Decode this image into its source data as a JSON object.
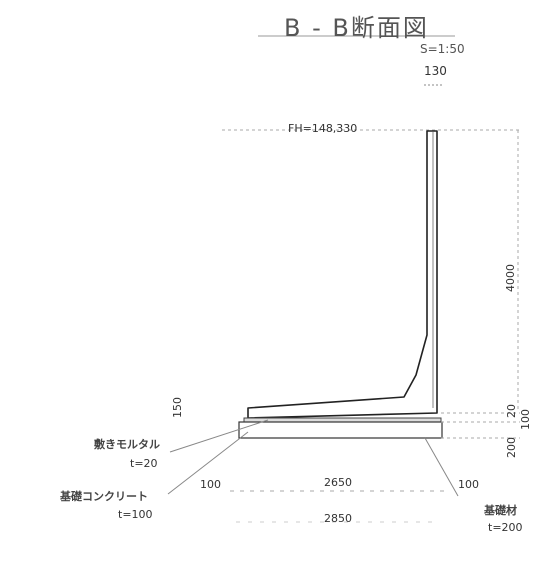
{
  "drawing": {
    "title": "B - B断面図",
    "scale": "S=1:50",
    "wall_thickness": "130",
    "fh_label": "FH=148,330",
    "wall_height": "4000",
    "haunch": "150",
    "dim_20": "20",
    "dim_100_right": "100",
    "dim_200_right": "200",
    "dim_100_left": "100",
    "dim_100_right_bottom": "100",
    "inner_width": "2650",
    "total_width": "2850",
    "leader_mortar_label": "敷きモルタル",
    "leader_mortar_thickness": "t=20",
    "leader_concrete_label": "基礎コンクリート",
    "leader_concrete_thickness": "t=100",
    "leader_base_label": "基礎材",
    "leader_base_thickness": "t=200"
  }
}
